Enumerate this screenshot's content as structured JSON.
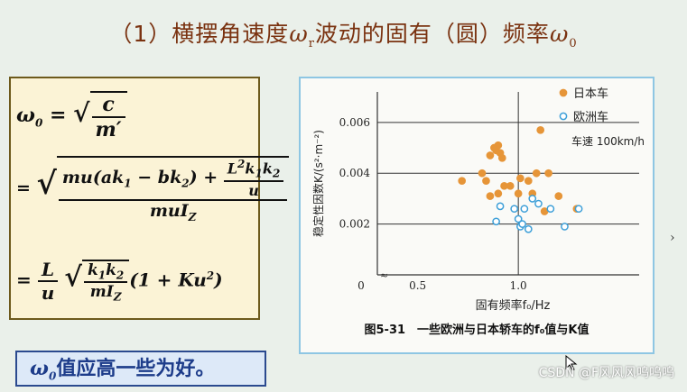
{
  "slide": {
    "title_prefix": "（1）横摆角速度",
    "title_omega": "ω",
    "title_omega_sub": "r",
    "title_middle": "波动的固有（圆）频率",
    "title_omega0": "ω",
    "title_omega0_sub": "0"
  },
  "formula": {
    "omega": "ω",
    "zero": "0",
    "eq": "=",
    "c": "c",
    "m_prime": "m′",
    "f2_num_a": "mu(ak",
    "f2_num_b": " − bk",
    "f2_num_c": ") +",
    "sub1": "1",
    "sub2": "2",
    "L2": "L",
    "sq": "2",
    "k1k2": "k",
    "u": "u",
    "muIz": "muI",
    "Z": "Z",
    "L": "L",
    "k1k2_num": "k",
    "mIz": "mI",
    "tail": "(1 + Ku",
    "close": ")"
  },
  "note": {
    "omega": "ω",
    "sub": "0",
    "text": "值应高一些为好。"
  },
  "chart_data": {
    "type": "scatter",
    "title": "",
    "caption": "图5-31　一些欧洲与日本轿车的f₀值与K值",
    "xlabel": "固有频率f₀/Hz",
    "ylabel": "稳定性因数K/(s²·m⁻²)",
    "annotation": "车速 100km/h",
    "x_ticks": [
      "0",
      "0.5",
      "1.0"
    ],
    "y_ticks": [
      "0.002",
      "0.004",
      "0.006"
    ],
    "xlim": [
      0.3,
      1.6
    ],
    "ylim": [
      0.0,
      0.0072
    ],
    "grid": "partial",
    "legend_position": "top-right",
    "series": [
      {
        "name": "日本车",
        "color": "#e69538",
        "points": [
          [
            0.72,
            0.0037
          ],
          [
            0.82,
            0.004
          ],
          [
            0.84,
            0.0037
          ],
          [
            0.86,
            0.0047
          ],
          [
            0.88,
            0.005
          ],
          [
            0.89,
            0.0049
          ],
          [
            0.9,
            0.0051
          ],
          [
            0.91,
            0.0048
          ],
          [
            0.92,
            0.0046
          ],
          [
            0.86,
            0.0031
          ],
          [
            0.9,
            0.0032
          ],
          [
            0.93,
            0.0035
          ],
          [
            0.96,
            0.0035
          ],
          [
            1.0,
            0.0032
          ],
          [
            1.01,
            0.0038
          ],
          [
            1.05,
            0.0037
          ],
          [
            1.07,
            0.0032
          ],
          [
            1.09,
            0.004
          ],
          [
            1.11,
            0.0057
          ],
          [
            1.15,
            0.004
          ],
          [
            1.13,
            0.0025
          ],
          [
            1.2,
            0.0031
          ],
          [
            1.29,
            0.0026
          ]
        ]
      },
      {
        "name": "欧洲车",
        "color": "#3d9fd8",
        "points": [
          [
            0.89,
            0.0021
          ],
          [
            0.91,
            0.0027
          ],
          [
            0.98,
            0.0026
          ],
          [
            1.0,
            0.0022
          ],
          [
            1.01,
            0.0019
          ],
          [
            1.02,
            0.002
          ],
          [
            1.03,
            0.0026
          ],
          [
            1.05,
            0.0018
          ],
          [
            1.07,
            0.003
          ],
          [
            1.1,
            0.0028
          ],
          [
            1.16,
            0.0026
          ],
          [
            1.23,
            0.0019
          ],
          [
            1.3,
            0.0026
          ]
        ]
      }
    ]
  },
  "icons": {
    "scroll_arrow": "chevron-right-icon",
    "cursor": "mouse-cursor-icon"
  },
  "watermark": "CSDN @F风风风呜呜呜"
}
